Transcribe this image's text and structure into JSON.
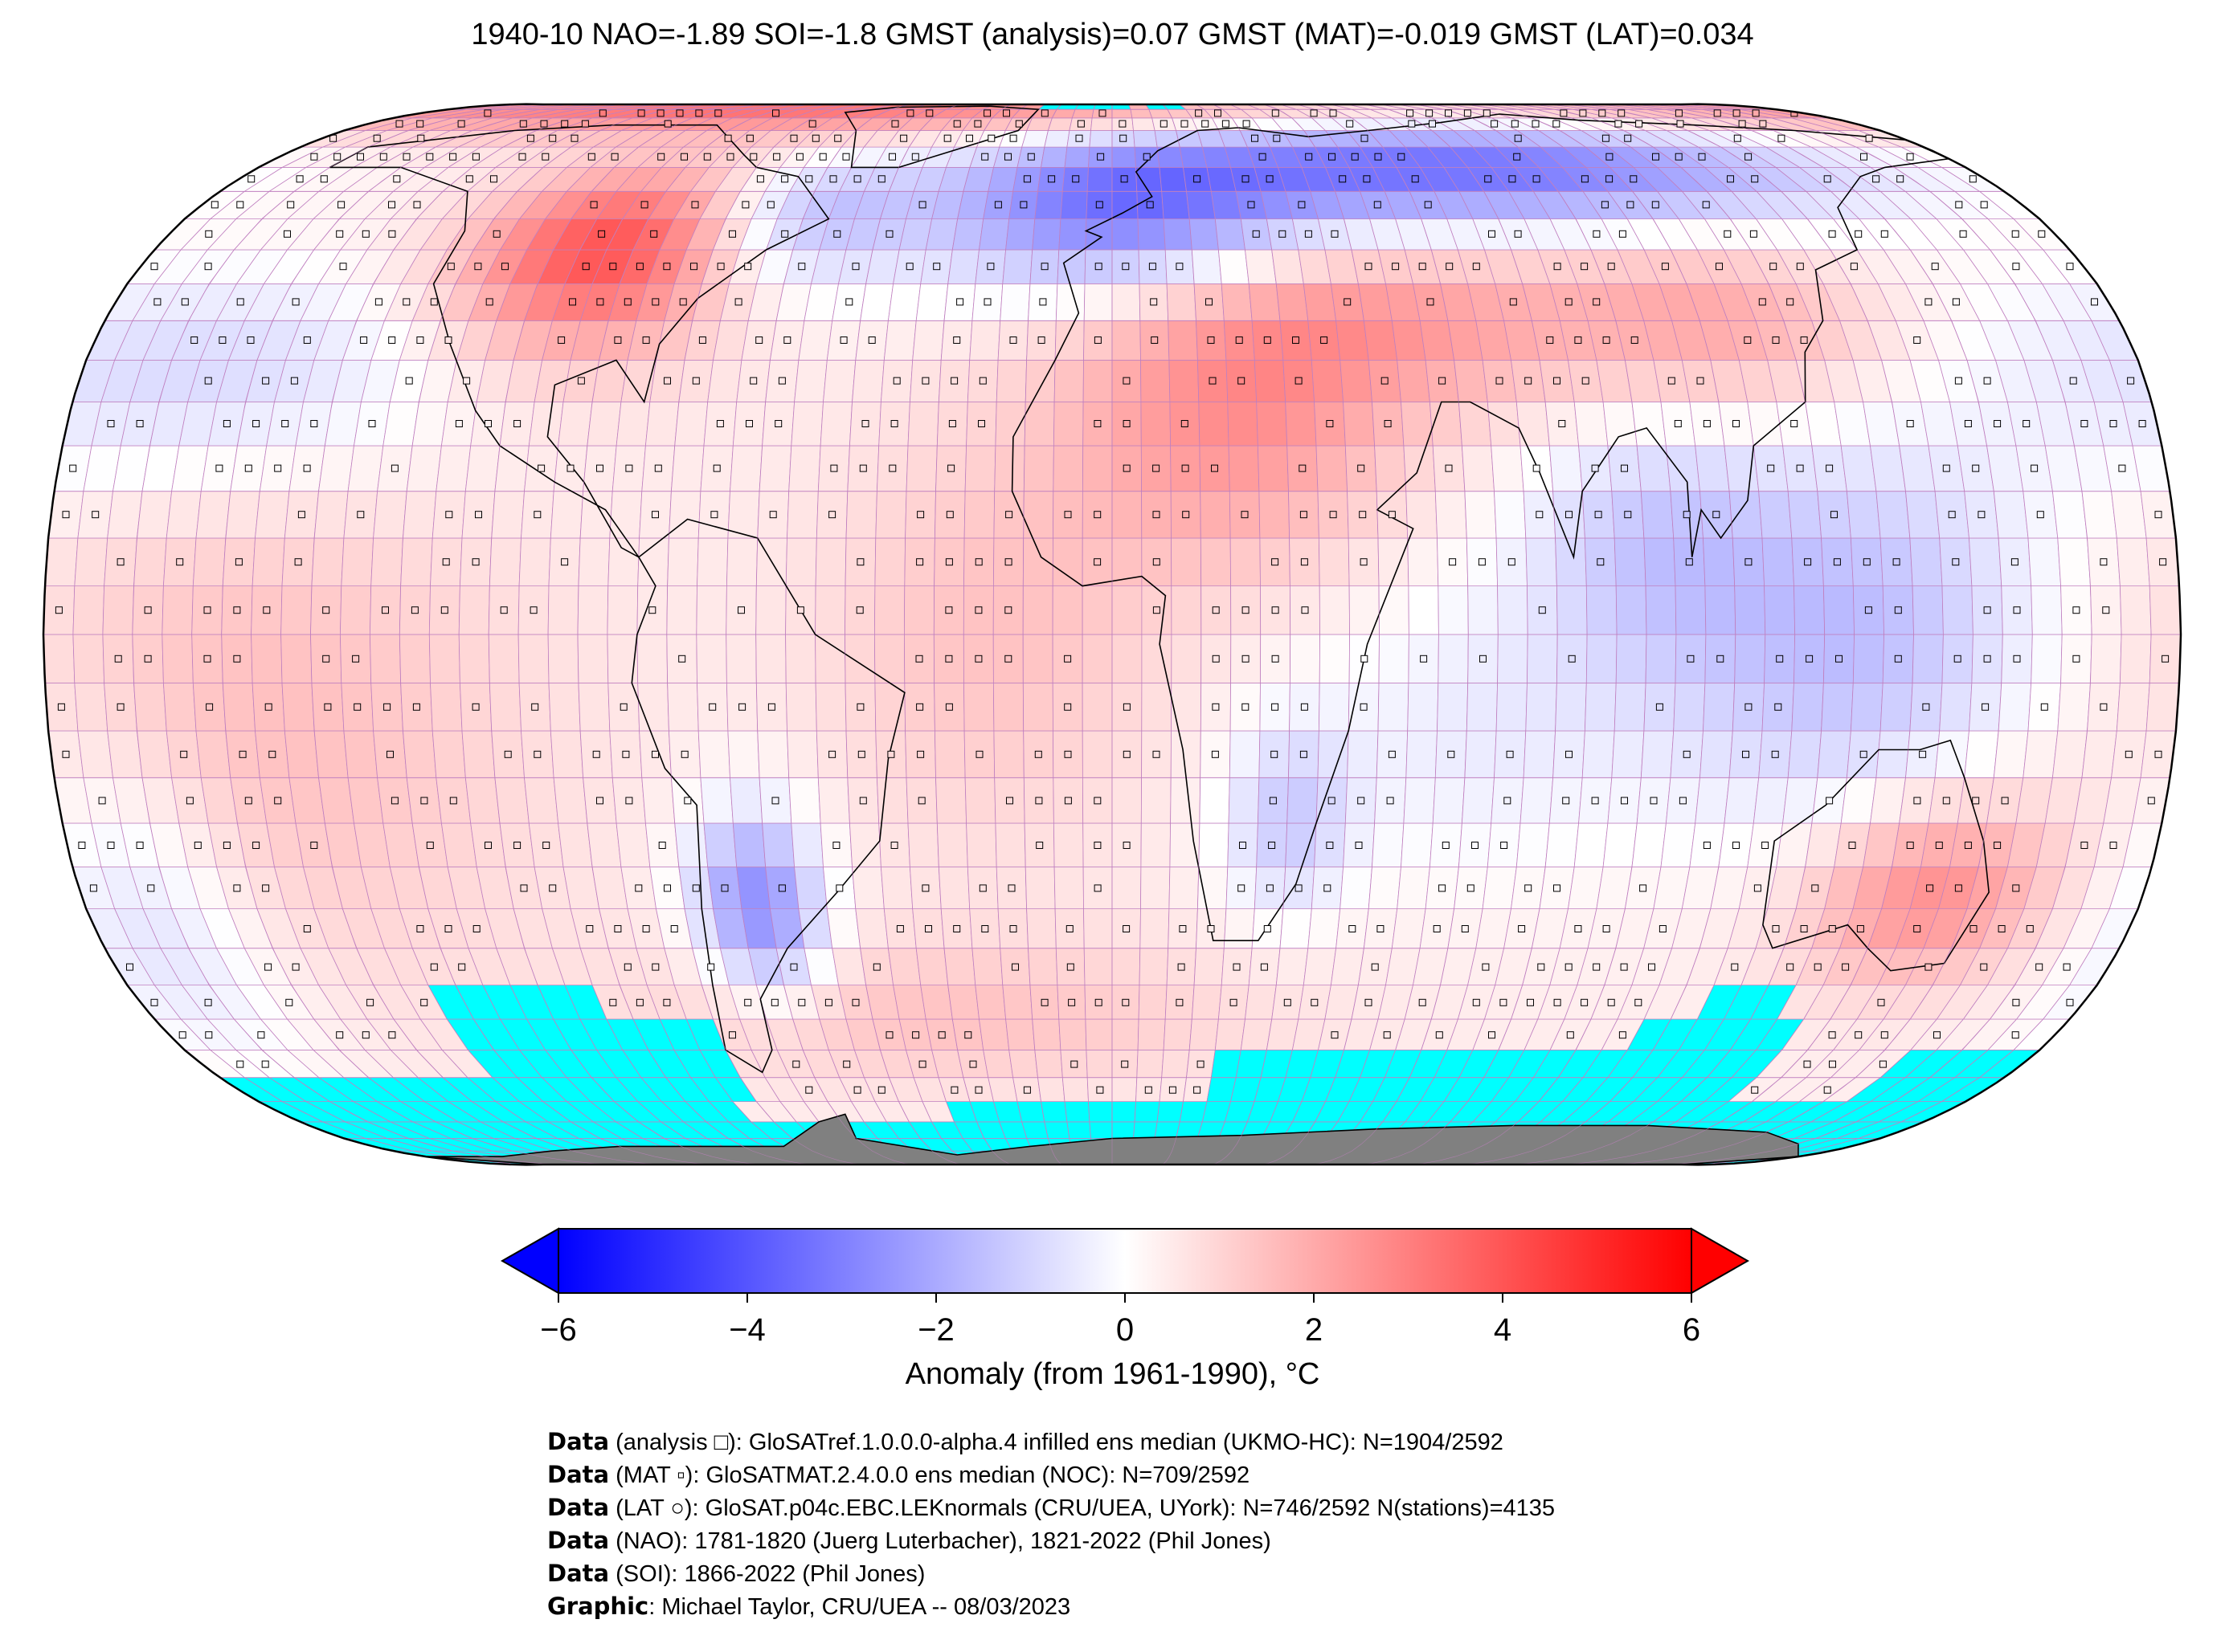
{
  "title": "1940-10 NAO=-1.89 SOI=-1.8 GMST (analysis)=0.07 GMST (MAT)=-0.019 GMST (LAT)=0.034",
  "map": {
    "projection": "Robinson",
    "colors": {
      "no_data": "#00ffff",
      "land_ice": "#808080",
      "cold": "#0000ff",
      "warm": "#ff0000",
      "neutral": "#ffffff",
      "coastline": "#000000",
      "grid_lines": "#c080c0"
    }
  },
  "colorbar": {
    "label": "Anomaly (from 1961-1990), °C",
    "ticks": [
      "−6",
      "−4",
      "−2",
      "0",
      "2",
      "4",
      "6"
    ],
    "tick_values": [
      -6,
      -4,
      -2,
      0,
      2,
      4,
      6
    ],
    "range": [
      -6,
      6
    ],
    "colormap": "bwr",
    "extend": "both"
  },
  "credits": [
    {
      "bold": "Data",
      "text": " (analysis □): GloSATref.1.0.0.0-alpha.4 infilled ens median (UKMO-HC): N=1904/2592"
    },
    {
      "bold": "Data",
      "text": " (MAT ▫): GloSATMAT.2.4.0.0 ens median (NOC): N=709/2592"
    },
    {
      "bold": "Data",
      "text": " (LAT ○): GloSAT.p04c.EBC.LEKnormals (CRU/UEA, UYork): N=746/2592 N(stations)=4135"
    },
    {
      "bold": "Data",
      "text": " (NAO): 1781-1820 (Juerg Luterbacher), 1821-2022 (Phil Jones)"
    },
    {
      "bold": "Data",
      "text": " (SOI): 1866-2022 (Phil Jones)"
    },
    {
      "bold": "Graphic",
      "text": ": Michael Taylor, CRU/UEA -- 08/03/2023"
    }
  ]
}
